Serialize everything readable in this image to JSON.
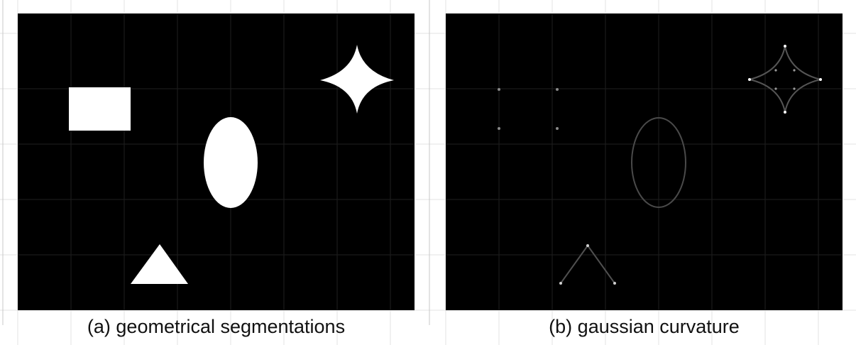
{
  "captions": {
    "a": "(a) geometrical segmentations",
    "b": "(b) gaussian curvature"
  },
  "colors": {
    "background": "#000000",
    "shape_fill": "#ffffff",
    "grid_line": "#d0d0d0",
    "curvature_edge": "#4a4a4a",
    "curvature_peak": "#ffffff"
  },
  "shapes": [
    "rectangle",
    "ellipse",
    "triangle",
    "four-point-star"
  ]
}
